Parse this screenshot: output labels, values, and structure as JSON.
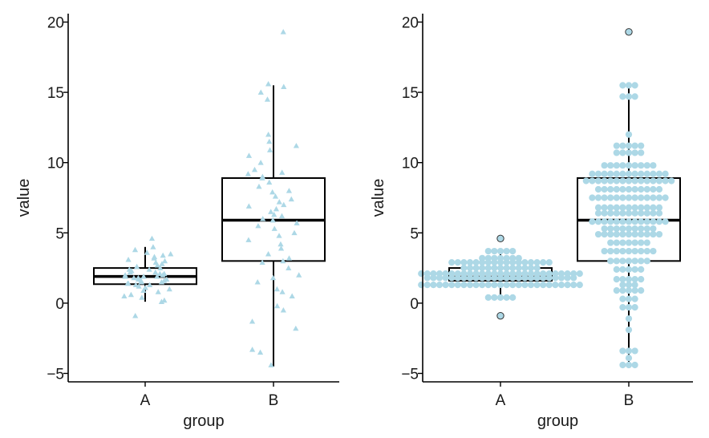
{
  "colors": {
    "point": "#add8e6",
    "line": "#000000",
    "outlier_fill": "#add8e6",
    "outlier_stroke": "#333333"
  },
  "chart_data": [
    {
      "type": "boxplot-jitter",
      "panel": "left",
      "xlabel": "group",
      "ylabel": "value",
      "categories": [
        "A",
        "B"
      ],
      "ylim": [
        -5.6,
        20.6
      ],
      "yticks": [
        -5,
        0,
        5,
        10,
        15,
        20
      ],
      "ytick_labels": [
        "−5",
        "0",
        "5",
        "10",
        "15",
        "20"
      ],
      "point_shape": "triangle",
      "boxes": [
        {
          "group": "A",
          "q1": 1.35,
          "median": 1.9,
          "q3": 2.5,
          "whisker_low": 0.1,
          "whisker_high": 4.0
        },
        {
          "group": "B",
          "q1": 3.0,
          "median": 5.9,
          "q3": 8.9,
          "whisker_low": -4.5,
          "whisker_high": 15.5
        }
      ],
      "points": [
        {
          "group": "A",
          "values": [
            4.0,
            3.8,
            4.6,
            3.5,
            3.3,
            3.2,
            3.1,
            3.0,
            2.9,
            2.8,
            2.7,
            2.6,
            2.5,
            2.4,
            2.4,
            2.3,
            2.2,
            2.1,
            2.1,
            2.0,
            2.0,
            1.9,
            1.9,
            1.8,
            1.8,
            1.7,
            1.7,
            1.6,
            1.6,
            1.5,
            1.5,
            1.4,
            1.4,
            1.3,
            1.2,
            1.1,
            1.0,
            0.9,
            0.8,
            0.6,
            0.4,
            0.2,
            0.1,
            -0.9,
            3.6,
            3.4,
            2.2,
            1.9,
            1.3,
            0.5
          ]
        },
        {
          "group": "B",
          "values": [
            19.3,
            15.6,
            15.4,
            15.0,
            14.5,
            12.0,
            11.5,
            11.2,
            10.9,
            10.5,
            10.0,
            9.5,
            9.3,
            9.2,
            9.0,
            8.9,
            8.6,
            8.3,
            8.0,
            7.9,
            7.6,
            7.4,
            7.2,
            7.0,
            6.9,
            6.7,
            6.5,
            6.3,
            6.2,
            6.0,
            5.9,
            5.7,
            5.5,
            5.3,
            5.0,
            4.8,
            4.5,
            4.2,
            3.9,
            3.5,
            3.2,
            3.0,
            2.9,
            2.5,
            2.0,
            1.8,
            1.5,
            1.0,
            0.8,
            0.5,
            -0.2,
            -0.5,
            -1.3,
            -1.8,
            -3.3,
            -3.5,
            -4.4
          ]
        }
      ]
    },
    {
      "type": "boxplot-dotplot",
      "panel": "right",
      "xlabel": "group",
      "ylabel": "value",
      "categories": [
        "A",
        "B"
      ],
      "ylim": [
        -5.6,
        20.6
      ],
      "yticks": [
        -5,
        0,
        5,
        10,
        15,
        20
      ],
      "ytick_labels": [
        "−5",
        "0",
        "5",
        "10",
        "15",
        "20"
      ],
      "point_shape": "circle",
      "boxes": [
        {
          "group": "A",
          "q1": 1.6,
          "median": 1.85,
          "q3": 2.5,
          "whisker_low": 0.3,
          "whisker_high": 3.7
        },
        {
          "group": "B",
          "q1": 3.0,
          "median": 5.9,
          "q3": 8.9,
          "whisker_low": -4.5,
          "whisker_high": 15.5
        }
      ],
      "outliers": [
        {
          "group": "A",
          "value": 4.6
        },
        {
          "group": "A",
          "value": -0.9
        },
        {
          "group": "B",
          "value": 19.3
        }
      ],
      "dot_bins": [
        {
          "group": "A",
          "bins": [
            [
              3.7,
              5
            ],
            [
              3.2,
              7
            ],
            [
              2.9,
              17
            ],
            [
              2.5,
              13
            ],
            [
              2.1,
              27
            ],
            [
              1.8,
              25
            ],
            [
              1.3,
              27
            ],
            [
              0.4,
              5
            ]
          ]
        },
        {
          "group": "B",
          "bins": [
            [
              15.5,
              3
            ],
            [
              14.7,
              3
            ],
            [
              12.0,
              1
            ],
            [
              11.2,
              5
            ],
            [
              10.7,
              5
            ],
            [
              9.8,
              9
            ],
            [
              9.2,
              13
            ],
            [
              8.7,
              15
            ],
            [
              8.1,
              11
            ],
            [
              7.5,
              13
            ],
            [
              6.8,
              11
            ],
            [
              6.4,
              11
            ],
            [
              5.8,
              13
            ],
            [
              5.3,
              9
            ],
            [
              4.9,
              11
            ],
            [
              4.3,
              7
            ],
            [
              3.7,
              9
            ],
            [
              3.0,
              7
            ],
            [
              2.4,
              5
            ],
            [
              1.7,
              5
            ],
            [
              1.3,
              3
            ],
            [
              0.9,
              5
            ],
            [
              0.3,
              3
            ],
            [
              -0.3,
              3
            ],
            [
              -1.1,
              1
            ],
            [
              -1.9,
              1
            ],
            [
              -3.4,
              3
            ],
            [
              -3.9,
              1
            ],
            [
              -4.4,
              3
            ]
          ]
        }
      ]
    }
  ]
}
